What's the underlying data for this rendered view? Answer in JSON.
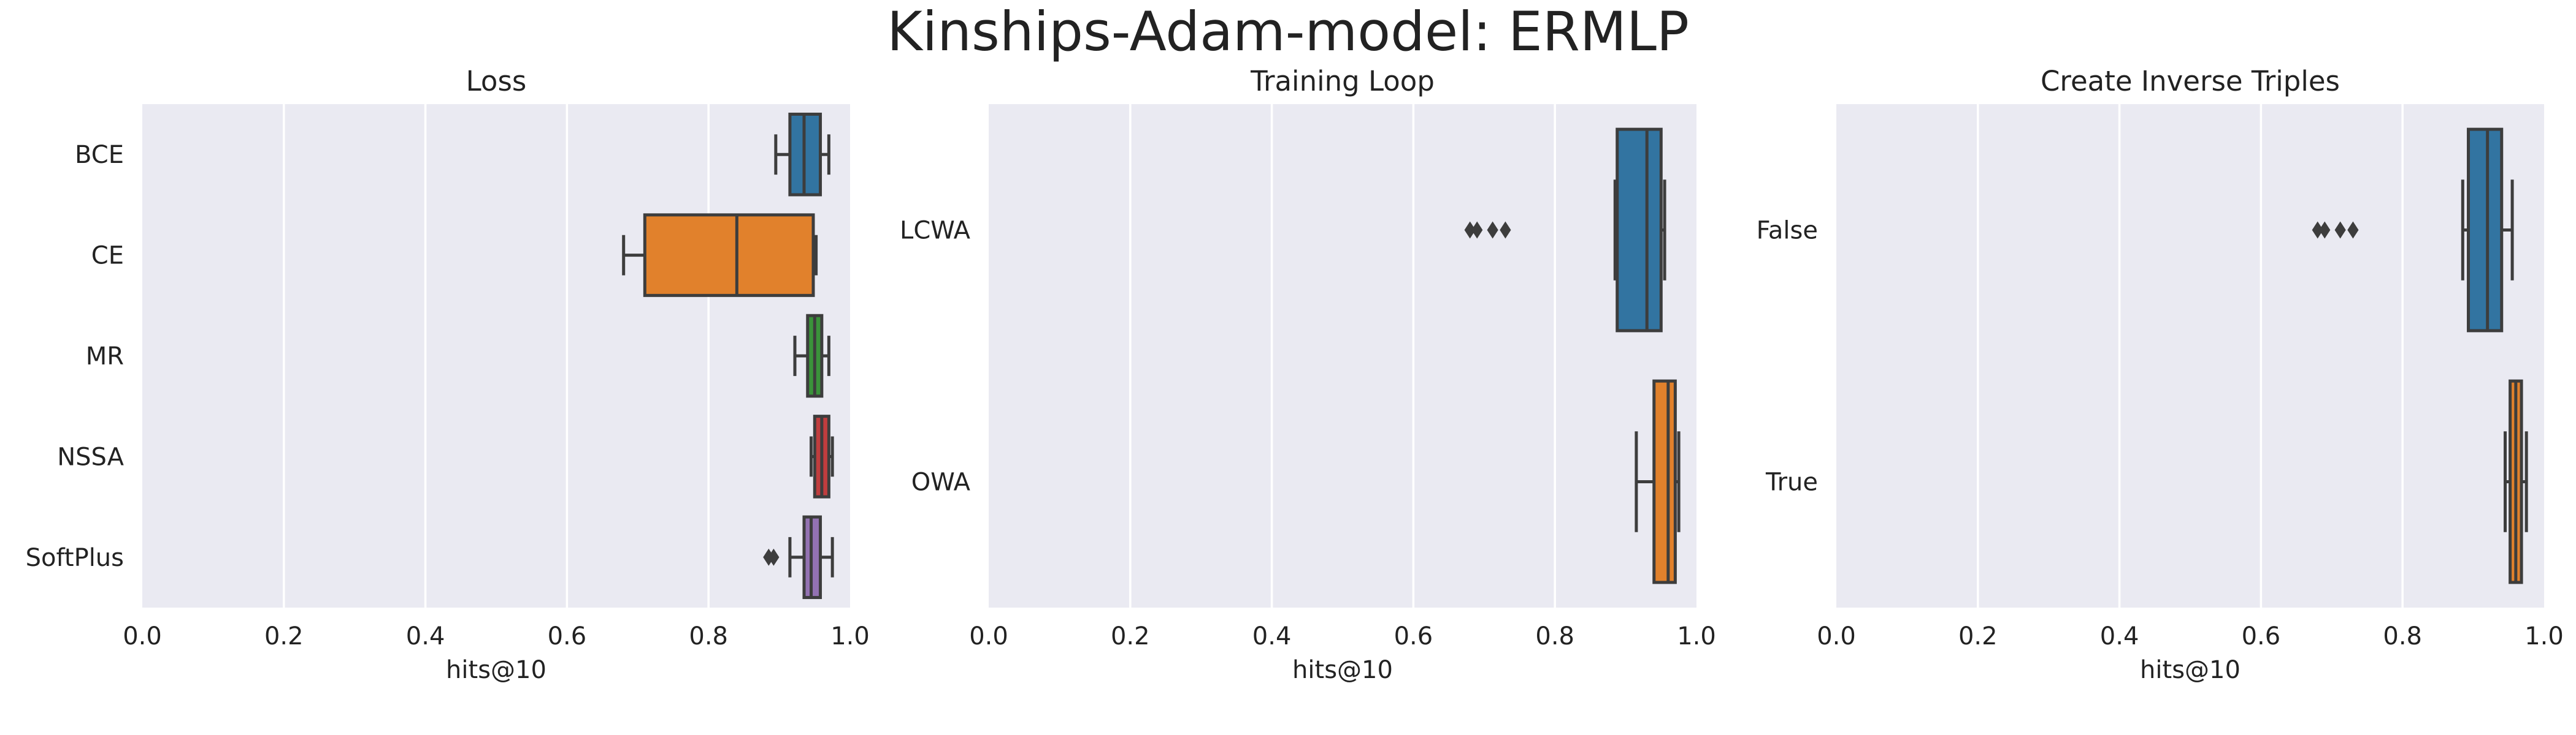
{
  "title": "Kinships-Adam-model: ERMLP",
  "chart_data": [
    {
      "type": "box",
      "title": "Loss",
      "xlabel": "hits@10",
      "xlim": [
        0,
        1
      ],
      "xticks": [
        "0.0",
        "0.2",
        "0.4",
        "0.6",
        "0.8",
        "1.0"
      ],
      "grid": true,
      "categories": [
        "BCE",
        "CE",
        "MR",
        "NSSA",
        "SoftPlus"
      ],
      "colors": [
        "#3274a1",
        "#e1812c",
        "#3a923a",
        "#c03d3e",
        "#9372b2"
      ],
      "boxes": [
        {
          "whislo": 0.895,
          "q1": 0.915,
          "med": 0.935,
          "q3": 0.958,
          "whishi": 0.97,
          "fliers": []
        },
        {
          "whislo": 0.68,
          "q1": 0.71,
          "med": 0.84,
          "q3": 0.948,
          "whishi": 0.952,
          "fliers": []
        },
        {
          "whislo": 0.922,
          "q1": 0.94,
          "med": 0.95,
          "q3": 0.96,
          "whishi": 0.97,
          "fliers": []
        },
        {
          "whislo": 0.945,
          "q1": 0.95,
          "med": 0.96,
          "q3": 0.97,
          "whishi": 0.975,
          "fliers": []
        },
        {
          "whislo": 0.915,
          "q1": 0.935,
          "med": 0.945,
          "q3": 0.958,
          "whishi": 0.975,
          "fliers": [
            0.885,
            0.892
          ]
        }
      ]
    },
    {
      "type": "box",
      "title": "Training Loop",
      "xlabel": "hits@10",
      "xlim": [
        0,
        1
      ],
      "xticks": [
        "0.0",
        "0.2",
        "0.4",
        "0.6",
        "0.8",
        "1.0"
      ],
      "grid": true,
      "categories": [
        "LCWA",
        "OWA"
      ],
      "colors": [
        "#3274a1",
        "#e1812c"
      ],
      "boxes": [
        {
          "whislo": 0.885,
          "q1": 0.888,
          "med": 0.93,
          "q3": 0.95,
          "whishi": 0.955,
          "fliers": [
            0.68,
            0.69,
            0.712,
            0.73
          ]
        },
        {
          "whislo": 0.915,
          "q1": 0.94,
          "med": 0.96,
          "q3": 0.97,
          "whishi": 0.975,
          "fliers": []
        }
      ]
    },
    {
      "type": "box",
      "title": "Create Inverse Triples",
      "xlabel": "hits@10",
      "xlim": [
        0,
        1
      ],
      "xticks": [
        "0.0",
        "0.2",
        "0.4",
        "0.6",
        "0.8",
        "1.0"
      ],
      "grid": true,
      "categories": [
        "False",
        "True"
      ],
      "colors": [
        "#3274a1",
        "#e1812c"
      ],
      "boxes": [
        {
          "whislo": 0.885,
          "q1": 0.893,
          "med": 0.92,
          "q3": 0.94,
          "whishi": 0.955,
          "fliers": [
            0.68,
            0.69,
            0.712,
            0.73
          ]
        },
        {
          "whislo": 0.945,
          "q1": 0.952,
          "med": 0.96,
          "q3": 0.968,
          "whishi": 0.975,
          "fliers": []
        }
      ]
    }
  ]
}
